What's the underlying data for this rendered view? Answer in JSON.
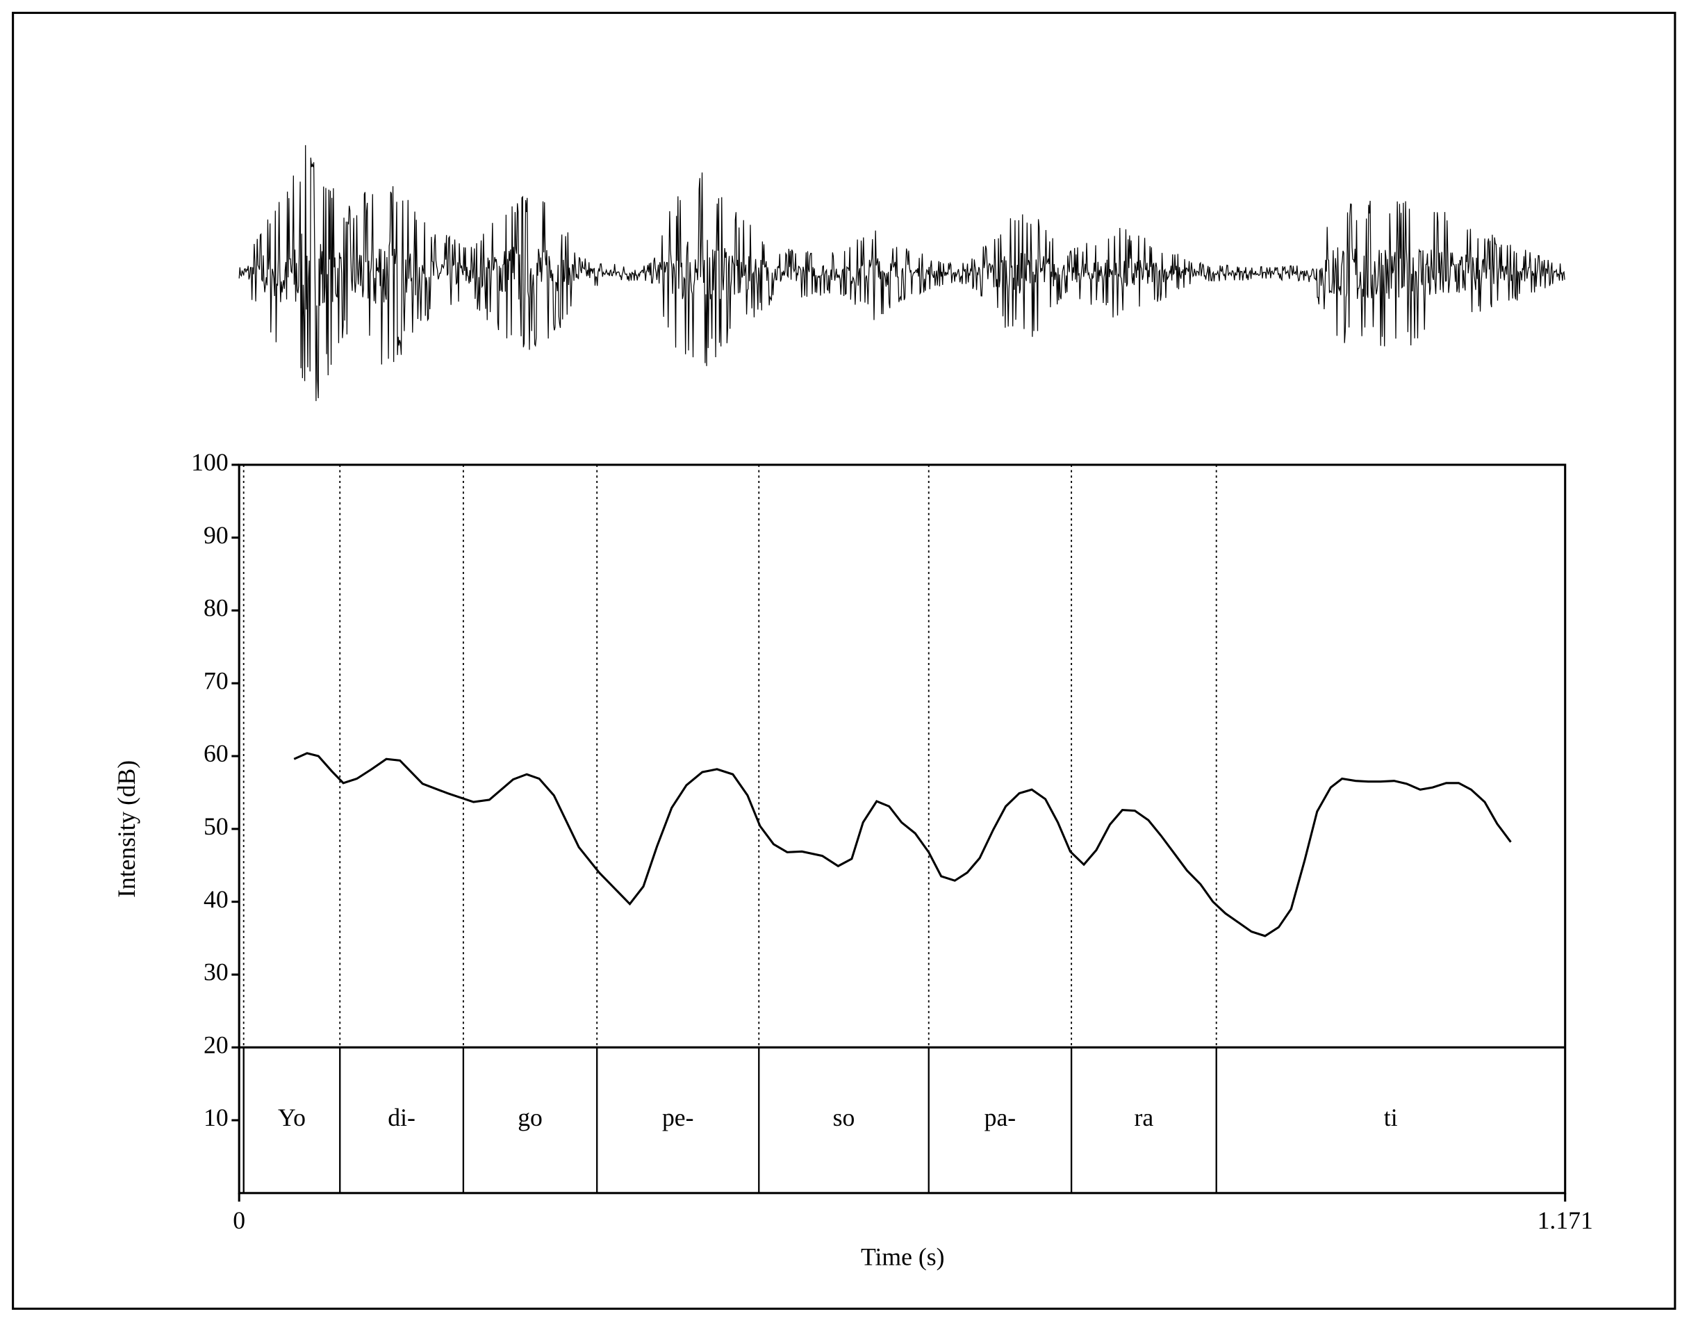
{
  "chart_data": {
    "type": "line",
    "xlabel": "Time (s)",
    "ylabel": "Intensity (dB)",
    "x": [
      0.0485,
      0.06,
      0.07,
      0.082,
      0.092,
      0.104,
      0.117,
      0.13,
      0.142,
      0.162,
      0.184,
      0.207,
      0.221,
      0.242,
      0.254,
      0.265,
      0.278,
      0.3,
      0.318,
      0.345,
      0.357,
      0.369,
      0.382,
      0.395,
      0.409,
      0.422,
      0.436,
      0.449,
      0.46,
      0.472,
      0.484,
      0.497,
      0.515,
      0.529,
      0.541,
      0.551,
      0.563,
      0.574,
      0.585,
      0.597,
      0.609,
      0.62,
      0.632,
      0.643,
      0.654,
      0.666,
      0.677,
      0.689,
      0.7,
      0.712,
      0.723,
      0.734,
      0.746,
      0.757,
      0.769,
      0.78,
      0.791,
      0.803,
      0.814,
      0.826,
      0.837,
      0.849,
      0.86,
      0.871,
      0.883,
      0.894,
      0.906,
      0.918,
      0.929,
      0.941,
      0.952,
      0.964,
      0.974,
      0.986,
      0.997,
      1.008,
      1.02,
      1.031,
      1.043,
      1.054,
      1.066,
      1.077,
      1.088,
      1.1,
      1.111,
      1.123
    ],
    "values": [
      59.6,
      60.4,
      60.0,
      57.9,
      56.3,
      56.9,
      58.2,
      59.6,
      59.4,
      56.2,
      54.9,
      53.7,
      54.0,
      56.8,
      57.5,
      56.9,
      54.6,
      47.5,
      44.0,
      39.7,
      42.1,
      47.6,
      52.9,
      56.0,
      57.8,
      58.2,
      57.5,
      54.6,
      50.4,
      47.9,
      46.8,
      46.9,
      46.3,
      44.9,
      45.9,
      50.9,
      53.8,
      53.1,
      50.9,
      49.4,
      46.8,
      43.5,
      42.9,
      44.0,
      46.0,
      49.9,
      53.1,
      54.9,
      55.4,
      54.1,
      50.9,
      46.9,
      45.1,
      47.1,
      50.6,
      52.6,
      52.5,
      51.2,
      49.1,
      46.6,
      44.3,
      42.4,
      40.0,
      38.4,
      37.1,
      35.9,
      35.3,
      36.5,
      39.0,
      45.7,
      52.4,
      55.7,
      56.9,
      56.6,
      56.5,
      56.5,
      56.6,
      56.2,
      55.4,
      55.7,
      56.3,
      56.3,
      55.4,
      53.7,
      50.7,
      48.2
    ],
    "color": "#000000",
    "xlim": [
      0,
      1.171
    ],
    "xticks": [
      0,
      1.171
    ],
    "ylim": [
      0,
      100
    ],
    "yticks": [
      10,
      20,
      30,
      40,
      50,
      60,
      70,
      80,
      90,
      100
    ],
    "tier": {
      "top": 20,
      "labels": [
        "Yo",
        "di-",
        "go",
        "pe-",
        "so",
        "pa-",
        "ra",
        "ti"
      ],
      "boundaries": [
        0.004,
        0.089,
        0.198,
        0.316,
        0.459,
        0.609,
        0.735,
        0.863
      ]
    }
  }
}
